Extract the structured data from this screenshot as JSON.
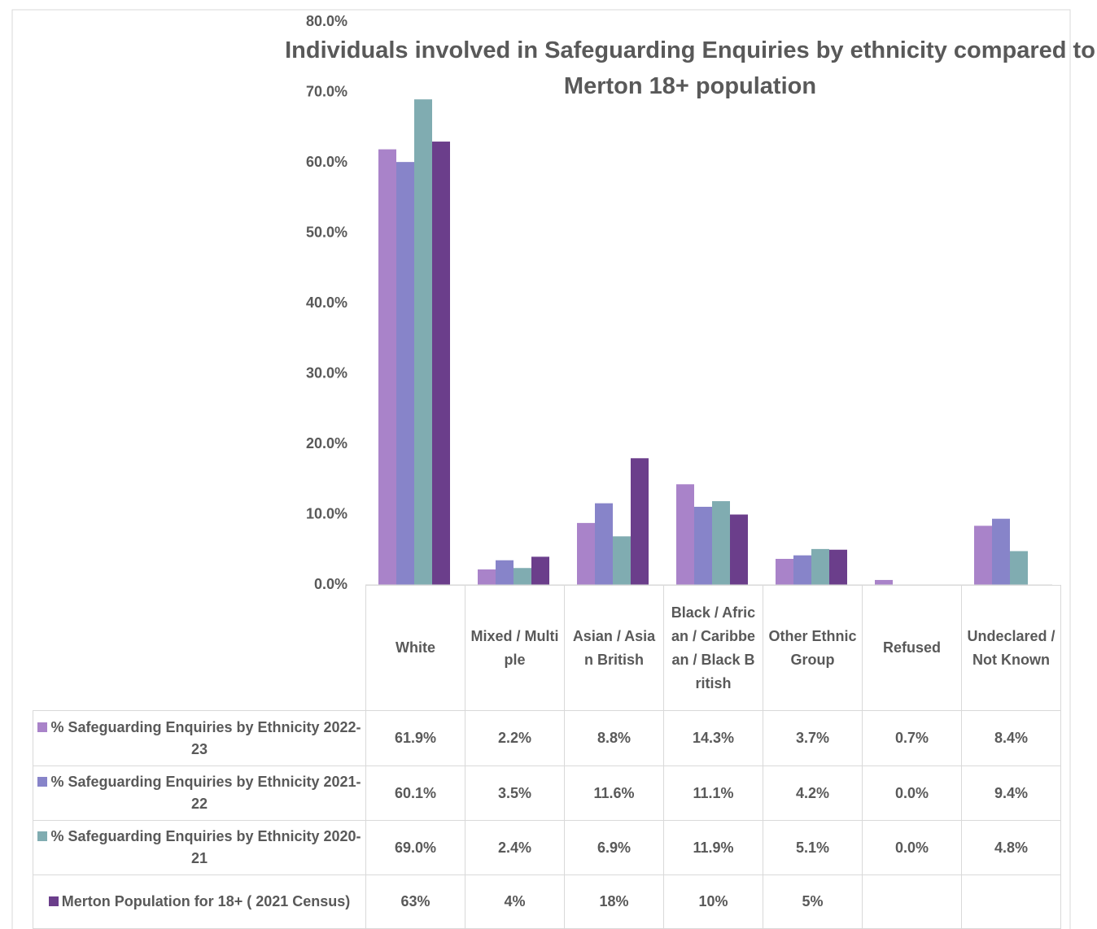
{
  "chart_data": {
    "type": "bar",
    "title": "Individuals involved in Safeguarding Enquiries by ethnicity compared to Merton 18+ population",
    "categories": [
      "White",
      "Mixed / Multiple",
      "Asian / Asian British",
      "Black / African / Caribbean / Black British",
      "Other Ethnic Group",
      "Refused",
      "Undeclared / Not Known"
    ],
    "series": [
      {
        "name": "% Safeguarding Enquiries by Ethnicity 2022-23",
        "color": "#a983c9",
        "values": [
          61.9,
          2.2,
          8.8,
          14.3,
          3.7,
          0.7,
          8.4
        ],
        "value_labels": [
          "61.9%",
          "2.2%",
          "8.8%",
          "14.3%",
          "3.7%",
          "0.7%",
          "8.4%"
        ]
      },
      {
        "name": "% Safeguarding Enquiries by Ethnicity 2021-22",
        "color": "#8784c9",
        "values": [
          60.1,
          3.5,
          11.6,
          11.1,
          4.2,
          0.0,
          9.4
        ],
        "value_labels": [
          "60.1%",
          "3.5%",
          "11.6%",
          "11.1%",
          "4.2%",
          "0.0%",
          "9.4%"
        ]
      },
      {
        "name": "% Safeguarding Enquiries by Ethnicity 2020-21",
        "color": "#80acb1",
        "values": [
          69.0,
          2.4,
          6.9,
          11.9,
          5.1,
          0.0,
          4.8
        ],
        "value_labels": [
          "69.0%",
          "2.4%",
          "6.9%",
          "11.9%",
          "5.1%",
          "0.0%",
          "4.8%"
        ]
      },
      {
        "name": "Merton Population for 18+ ( 2021 Census)",
        "color": "#6b3e8b",
        "values": [
          63,
          4,
          18,
          10,
          5,
          null,
          null
        ],
        "value_labels": [
          "63%",
          "4%",
          "18%",
          "10%",
          "5%",
          null,
          null
        ]
      }
    ],
    "ylim": [
      0,
      80
    ],
    "yticks": [
      {
        "value": 0,
        "label": "0.0%"
      },
      {
        "value": 10,
        "label": "10.0%"
      },
      {
        "value": 20,
        "label": "20.0%"
      },
      {
        "value": 30,
        "label": "30.0%"
      },
      {
        "value": 40,
        "label": "40.0%"
      },
      {
        "value": 50,
        "label": "50.0%"
      },
      {
        "value": 60,
        "label": "60.0%"
      },
      {
        "value": 70,
        "label": "70.0%"
      },
      {
        "value": 80,
        "label": "80.0%"
      }
    ],
    "grid": false
  }
}
